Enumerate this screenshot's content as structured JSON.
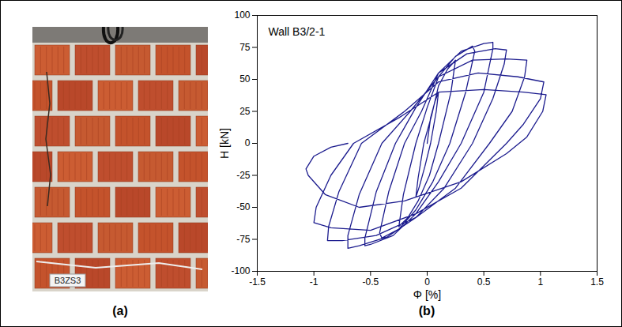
{
  "chart_data": {
    "type": "line",
    "panel_label": "(b)",
    "annotations": [
      "Wall B3/2-1"
    ],
    "x_label": "Φ [%]",
    "y_label": "H [kN]",
    "color": "#1c1c8e",
    "grid": false,
    "xlim": [
      -1.5,
      1.5
    ],
    "xticks": [
      -1.5,
      -1,
      -0.5,
      0,
      0.5,
      1,
      1.5
    ],
    "ylim": [
      -100,
      100
    ],
    "yticks": [
      -100,
      -75,
      -50,
      -25,
      0,
      25,
      50,
      75,
      100
    ],
    "x": [
      0,
      0.03,
      0.07,
      0.1,
      0.08,
      0.03,
      -0.02,
      -0.07,
      -0.1,
      -0.08,
      -0.03,
      0.04,
      0.1,
      0.18,
      0.25,
      0.21,
      0.1,
      0.02,
      -0.08,
      -0.17,
      -0.25,
      -0.21,
      -0.1,
      0,
      0.1,
      0.25,
      0.4,
      0.42,
      0.34,
      0.2,
      0.05,
      -0.1,
      -0.25,
      -0.4,
      -0.42,
      -0.34,
      -0.2,
      -0.05,
      0.1,
      0.3,
      0.5,
      0.58,
      0.58,
      0.5,
      0.3,
      0.1,
      -0.1,
      -0.3,
      -0.5,
      -0.55,
      -0.55,
      -0.45,
      -0.28,
      -0.1,
      0.1,
      0.35,
      0.6,
      0.7,
      0.68,
      0.58,
      0.4,
      0.15,
      -0.1,
      -0.35,
      -0.6,
      -0.7,
      -0.7,
      -0.6,
      -0.4,
      -0.15,
      0.1,
      0.4,
      0.7,
      0.88,
      0.86,
      0.75,
      0.55,
      0.25,
      -0.1,
      -0.45,
      -0.75,
      -0.88,
      -0.87,
      -0.78,
      -0.58,
      -0.2,
      0.1,
      0.45,
      0.8,
      1.03,
      1,
      0.85,
      0.7,
      0.3,
      -0.1,
      -0.5,
      -0.85,
      -1,
      -0.98,
      -0.85,
      -0.65,
      -0.25,
      0.1,
      0.5,
      0.85,
      1.05,
      1.02,
      0.88,
      0.7,
      0.3,
      -0.2,
      -0.6,
      -0.9,
      -1.05,
      -1.07,
      -1,
      -0.85,
      -0.7
    ],
    "values": [
      0,
      20,
      33,
      40,
      25,
      0,
      -18,
      -34,
      -42,
      -27,
      0,
      22,
      45,
      58,
      65,
      40,
      0,
      -25,
      -45,
      -58,
      -65,
      -40,
      0,
      28,
      52,
      68,
      76,
      72,
      40,
      0,
      -30,
      -52,
      -67,
      -74,
      -70,
      -38,
      0,
      25,
      55,
      72,
      78,
      79,
      74,
      40,
      0,
      -30,
      -55,
      -72,
      -79,
      -80,
      -74,
      -38,
      0,
      28,
      55,
      70,
      74,
      73,
      62,
      35,
      0,
      -35,
      -58,
      -73,
      -80,
      -82,
      -72,
      -40,
      0,
      25,
      52,
      65,
      66,
      65,
      52,
      25,
      0,
      -35,
      -58,
      -72,
      -76,
      -76,
      -65,
      -38,
      0,
      25,
      48,
      55,
      52,
      48,
      35,
      15,
      0,
      -35,
      -55,
      -68,
      -66,
      -62,
      -50,
      -25,
      0,
      20,
      40,
      42,
      40,
      38,
      25,
      5,
      -8,
      -30,
      -45,
      -50,
      -40,
      -25,
      -20,
      -10,
      -3,
      0
    ]
  },
  "photo": {
    "panel_label": "(a)",
    "sign_text": "B3ZS3"
  }
}
